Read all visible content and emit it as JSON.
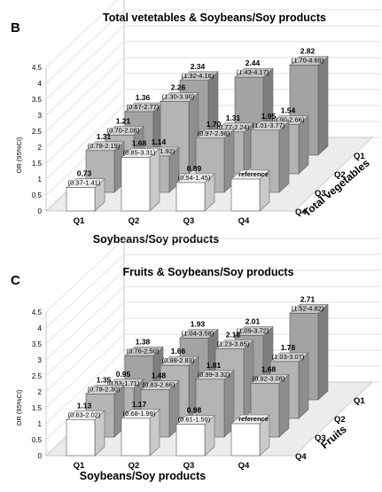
{
  "chart_data": [
    {
      "panel_label": "B",
      "type": "bar",
      "subtype": "3d-grouped",
      "title": "Total vetetables & Soybeans/Soy products",
      "ylabel": "OR (95%CI)",
      "xlabel": "Soybeans/Soy products",
      "zlabel": "Total vegetables",
      "ylim": [
        0,
        4.5
      ],
      "yticks": [
        "0",
        "0.5",
        "1",
        "1.5",
        "2",
        "2.5",
        "3",
        "3.5",
        "4",
        "4.5"
      ],
      "categories": [
        "Q1",
        "Q2",
        "Q3",
        "Q4"
      ],
      "series": [
        {
          "name": "Q1",
          "values": [
            1.36,
            2.34,
            2.44,
            2.82
          ],
          "ci": [
            "(0.67-2.77)",
            "(1.32-4.16)",
            "(1.43-4.17)",
            "(1.70-4.69)"
          ],
          "labels": [
            "1.36",
            "2.34",
            "2.44",
            "2.82"
          ]
        },
        {
          "name": "Q2",
          "values": [
            1.21,
            2.26,
            1.31,
            1.54
          ],
          "ci": [
            "(0.70-2.08)",
            "(1.30-3.90)",
            "(0.77-2.24)",
            "(0.90-2.66)"
          ],
          "labels": [
            "1.21",
            "2.26",
            "1.31",
            "1.54"
          ]
        },
        {
          "name": "Q3",
          "values": [
            1.31,
            1.14,
            1.7,
            1.95
          ],
          "ci": [
            "(0.78-2.19)",
            "(0.68-1.92)",
            "(0.97-2.98)",
            "(1.01-3.77)"
          ],
          "labels": [
            "1.31",
            "1.14",
            "1.70",
            "1.95"
          ]
        },
        {
          "name": "Q4",
          "values": [
            0.73,
            1.68,
            0.89,
            1.0
          ],
          "ci": [
            "(0.37-1.41)",
            "(0.85-3.31)",
            "(0.54-1.45)",
            ""
          ],
          "labels": [
            "0.73",
            "1.68",
            "0.89",
            "reference"
          ]
        }
      ]
    },
    {
      "panel_label": "C",
      "type": "bar",
      "subtype": "3d-grouped",
      "title": "Fruits & Soybeans/Soy products",
      "ylabel": "OR (95%CI)",
      "xlabel": "Soybeans/Soy products",
      "zlabel": "Fruits",
      "ylim": [
        0,
        4.5
      ],
      "yticks": [
        "0",
        "0.5",
        "1",
        "1.5",
        "2",
        "2.5",
        "3",
        "3.5",
        "4",
        "4.5"
      ],
      "categories": [
        "Q1",
        "Q2",
        "Q3",
        "Q4"
      ],
      "series": [
        {
          "name": "Q1",
          "values": [
            1.38,
            1.93,
            2.01,
            2.71
          ],
          "ci": [
            "(0.76-2.50)",
            "(1.04-3.58)",
            "(1.09-3.72)",
            "(1.52-4.82)"
          ],
          "labels": [
            "1.38",
            "1.93",
            "2.01",
            "2.71"
          ]
        },
        {
          "name": "Q2",
          "values": [
            0.95,
            1.66,
            2.18,
            1.78
          ],
          "ci": [
            "(0.53-1.71)",
            "(0.98-2.83)",
            "(1.23-3.85)",
            "(1.03-3.07)"
          ],
          "labels": [
            "0.95",
            "1.66",
            "2.18",
            "1.78"
          ]
        },
        {
          "name": "Q3",
          "values": [
            1.35,
            1.48,
            1.81,
            1.68
          ],
          "ci": [
            "(0.78-2.30)",
            "(0.83-2.66)",
            "(0.99-3.32)",
            "(0.92-3.08)"
          ],
          "labels": [
            "1.35",
            "1.48",
            "1.81",
            "1.68"
          ]
        },
        {
          "name": "Q4",
          "values": [
            1.13,
            1.17,
            0.98,
            1.0
          ],
          "ci": [
            "(0.63-2.02)",
            "(0.68-1.99)",
            "(0.61-1.59)",
            ""
          ],
          "labels": [
            "1.13",
            "1.17",
            "0.98",
            "reference"
          ]
        }
      ]
    }
  ]
}
